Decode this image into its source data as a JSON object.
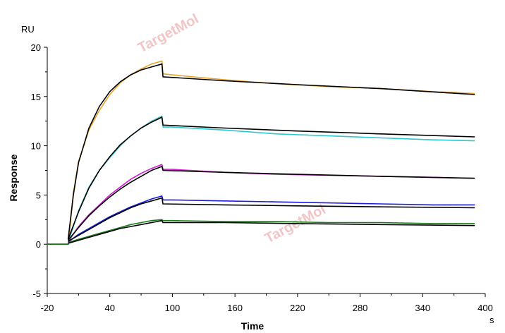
{
  "watermark": "TargetMol",
  "chart_data": {
    "type": "line",
    "title": "",
    "xlabel": "Time",
    "ylabel": "Response",
    "x_unit": "s",
    "y_unit": "RU",
    "xlim": [
      -20,
      400
    ],
    "ylim": [
      -5,
      20
    ],
    "xticks": [
      -20,
      40,
      100,
      160,
      220,
      280,
      340,
      400
    ],
    "yticks": [
      -5,
      0,
      5,
      10,
      15,
      20
    ],
    "grid": false,
    "legend": "none",
    "series": [
      {
        "color": "#e8a52a",
        "x": [
          -20,
          0,
          1,
          5,
          10,
          20,
          30,
          40,
          50,
          60,
          70,
          80,
          90,
          91,
          100,
          150,
          200,
          250,
          300,
          350,
          390
        ],
        "y": [
          0,
          0,
          0.8,
          5.2,
          8.4,
          11.6,
          13.6,
          15.2,
          16.4,
          17.2,
          17.8,
          18.3,
          18.6,
          17.3,
          17.2,
          16.7,
          16.3,
          16.0,
          15.8,
          15.5,
          15.3
        ]
      },
      {
        "color": "#2ec8d0",
        "x": [
          -20,
          0,
          1,
          10,
          20,
          30,
          40,
          50,
          60,
          70,
          80,
          90,
          91,
          100,
          150,
          200,
          250,
          300,
          350,
          390
        ],
        "y": [
          0,
          0,
          0.5,
          3.4,
          5.8,
          7.5,
          8.8,
          10.0,
          11.0,
          11.8,
          12.5,
          13.0,
          11.9,
          11.9,
          11.6,
          11.2,
          11.0,
          10.8,
          10.6,
          10.5
        ]
      },
      {
        "color": "#d21ad2",
        "x": [
          -20,
          0,
          1,
          10,
          20,
          30,
          40,
          50,
          60,
          70,
          80,
          90,
          91,
          100,
          150,
          200,
          250,
          300,
          350,
          390
        ],
        "y": [
          0,
          0,
          0.4,
          1.8,
          3.0,
          4.0,
          5.0,
          5.8,
          6.6,
          7.2,
          7.7,
          8.1,
          7.6,
          7.6,
          7.3,
          7.1,
          7.0,
          6.9,
          6.8,
          6.7
        ]
      },
      {
        "color": "#1c1ce0",
        "x": [
          -20,
          0,
          1,
          10,
          20,
          30,
          40,
          50,
          60,
          70,
          80,
          90,
          91,
          100,
          150,
          200,
          250,
          300,
          350,
          390
        ],
        "y": [
          0,
          0,
          0.3,
          1.0,
          1.6,
          2.2,
          2.8,
          3.3,
          3.8,
          4.2,
          4.6,
          4.9,
          4.5,
          4.5,
          4.4,
          4.3,
          4.2,
          4.1,
          4.0,
          4.0
        ]
      },
      {
        "color": "#1a7a1a",
        "x": [
          -20,
          0,
          1,
          10,
          20,
          30,
          40,
          50,
          60,
          70,
          80,
          90,
          91,
          100,
          150,
          200,
          250,
          300,
          350,
          390
        ],
        "y": [
          0,
          0,
          0.2,
          0.5,
          0.8,
          1.1,
          1.4,
          1.7,
          2.0,
          2.2,
          2.4,
          2.5,
          2.4,
          2.4,
          2.3,
          2.3,
          2.2,
          2.2,
          2.1,
          2.1
        ]
      }
    ],
    "fits": [
      {
        "color": "#000000",
        "x": [
          0,
          5,
          10,
          20,
          30,
          40,
          50,
          60,
          70,
          80,
          90,
          91,
          150,
          220,
          300,
          390
        ],
        "y": [
          0.5,
          5.0,
          8.3,
          11.8,
          14.0,
          15.5,
          16.5,
          17.2,
          17.7,
          18.0,
          18.3,
          17.0,
          16.6,
          16.2,
          15.8,
          15.2
        ]
      },
      {
        "color": "#000000",
        "x": [
          0,
          10,
          20,
          30,
          40,
          50,
          60,
          70,
          80,
          90,
          91,
          150,
          220,
          300,
          390
        ],
        "y": [
          0.5,
          3.3,
          5.7,
          7.5,
          8.9,
          10.1,
          11.0,
          11.8,
          12.4,
          12.9,
          12.1,
          11.8,
          11.5,
          11.2,
          10.9
        ]
      },
      {
        "color": "#000000",
        "x": [
          0,
          10,
          20,
          30,
          40,
          50,
          60,
          70,
          80,
          90,
          91,
          150,
          220,
          300,
          390
        ],
        "y": [
          0.4,
          1.7,
          2.9,
          3.9,
          4.8,
          5.6,
          6.3,
          6.9,
          7.5,
          7.9,
          7.5,
          7.3,
          7.1,
          6.9,
          6.7
        ]
      },
      {
        "color": "#000000",
        "x": [
          0,
          10,
          20,
          30,
          40,
          50,
          60,
          70,
          80,
          90,
          91,
          150,
          220,
          300,
          390
        ],
        "y": [
          0.3,
          0.9,
          1.5,
          2.1,
          2.7,
          3.2,
          3.7,
          4.1,
          4.4,
          4.7,
          4.1,
          4.0,
          3.9,
          3.8,
          3.7
        ]
      },
      {
        "color": "#000000",
        "x": [
          0,
          10,
          20,
          30,
          40,
          50,
          60,
          70,
          80,
          90,
          91,
          150,
          220,
          300,
          390
        ],
        "y": [
          0.1,
          0.4,
          0.7,
          1.0,
          1.3,
          1.6,
          1.8,
          2.0,
          2.2,
          2.4,
          2.2,
          2.2,
          2.1,
          2.0,
          1.9
        ]
      }
    ]
  }
}
